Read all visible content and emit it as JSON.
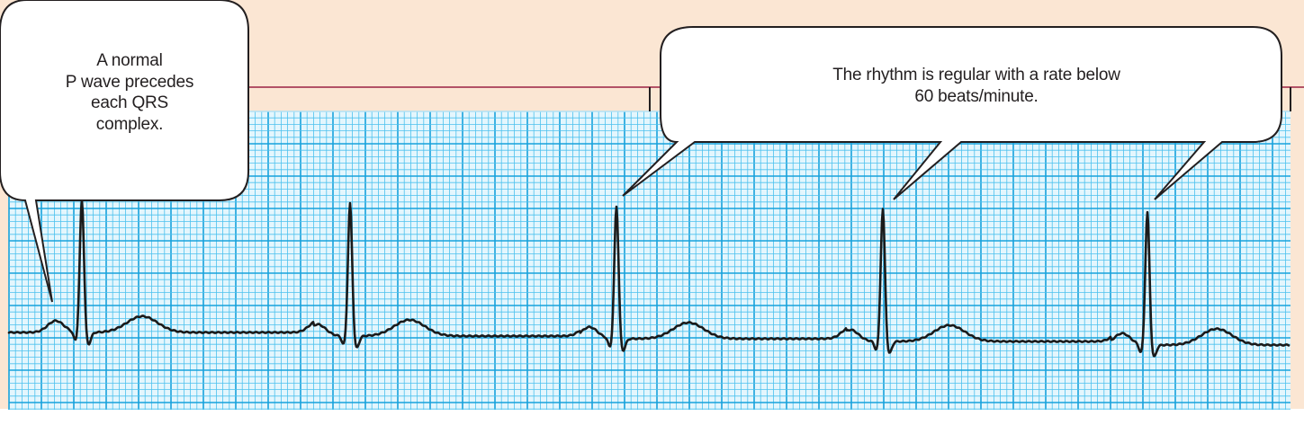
{
  "callouts": {
    "left": {
      "lines": [
        "A normal",
        "P wave precedes",
        "each QRS",
        "complex."
      ]
    },
    "right": {
      "lines": [
        "The rhythm is regular with a rate below",
        "60 beats/minute."
      ]
    }
  },
  "ecg_strip": {
    "rhythm": "regular",
    "rate_note": "below 60 beats/minute",
    "qrs_complex_count": 5,
    "p_wave_before_each_qrs": true
  },
  "colors": {
    "background_band": "#fbe6d3",
    "grid_fine": "#4cc1ee",
    "grid_major": "#16a2dc",
    "paper": "#e4f6fd",
    "trace": "#1a1a1a",
    "accent_line": "#9b2142",
    "callout_fill": "#ffffff",
    "callout_stroke": "#231f20"
  }
}
